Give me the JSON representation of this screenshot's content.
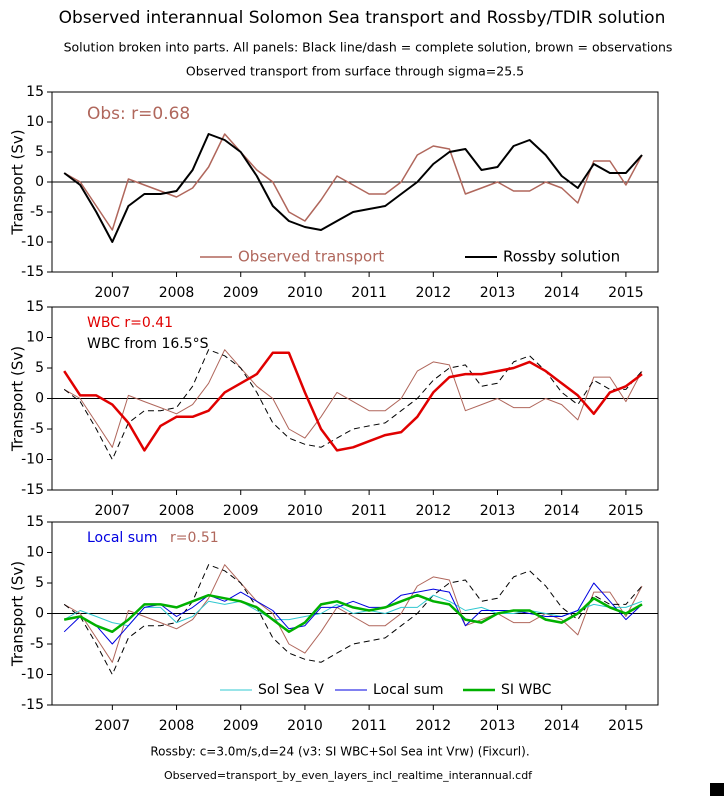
{
  "header": {
    "title": "Observed interannual Solomon Sea transport and Rossby/TDIR solution",
    "subtitle": "Solution broken into parts. All panels: Black line/dash = complete solution, brown = observations",
    "subtitle2": "Observed transport from surface through sigma=25.5"
  },
  "footer": {
    "line1": "Rossby: c=3.0m/s,d=24 (v3: SI WBC+Sol Sea int Vrw) (Fixcurl).",
    "line2": "Observed=transport_by_even_layers_incl_realtime_interannual.cdf"
  },
  "chart_data": [
    {
      "type": "line",
      "ylabel": "Transport (Sv)",
      "x": [
        2006.75,
        2007.0,
        2007.25,
        2007.5,
        2007.75,
        2008.0,
        2008.25,
        2008.5,
        2008.75,
        2009.0,
        2009.25,
        2009.5,
        2009.75,
        2010.0,
        2010.25,
        2010.5,
        2010.75,
        2011.0,
        2011.25,
        2011.5,
        2011.75,
        2012.0,
        2012.25,
        2012.5,
        2012.75,
        2013.0,
        2013.25,
        2013.5,
        2013.75,
        2014.0,
        2014.25,
        2014.5,
        2014.75,
        2015.0,
        2015.25,
        2015.5,
        2015.75
      ],
      "xlim": [
        2006.56,
        2016.0
      ],
      "xticks": [
        {
          "value": 2007.5,
          "label": "2007"
        },
        {
          "value": 2008.5,
          "label": "2008"
        },
        {
          "value": 2009.5,
          "label": "2009"
        },
        {
          "value": 2010.5,
          "label": "2010"
        },
        {
          "value": 2011.5,
          "label": "2011"
        },
        {
          "value": 2012.5,
          "label": "2012"
        },
        {
          "value": 2013.5,
          "label": "2013"
        },
        {
          "value": 2014.5,
          "label": "2014"
        },
        {
          "value": 2015.5,
          "label": "2015"
        }
      ],
      "ylim": [
        -15,
        15
      ],
      "yticks": [
        -15,
        -10,
        -5,
        0,
        5,
        10,
        15
      ],
      "annotations": [
        {
          "text": "Obs: r=0.68",
          "color": "#b0675c"
        }
      ],
      "series": [
        {
          "name": "Observed transport",
          "color": "#b0675c",
          "width": 1.5,
          "dash": false,
          "values": [
            1.5,
            0,
            -4,
            -8,
            0.5,
            -0.5,
            -1.5,
            -2.5,
            -1,
            2.5,
            8,
            5,
            2,
            0,
            -5,
            -6.5,
            -3,
            1,
            -0.5,
            -2,
            -2,
            0,
            4.5,
            6,
            5.5,
            -2,
            -1,
            0,
            -1.5,
            -1.5,
            0,
            -1,
            -3.5,
            3.5,
            3.5,
            -0.5,
            4.5
          ]
        },
        {
          "name": "Rossby solution",
          "color": "#000000",
          "width": 2,
          "dash": false,
          "values": [
            1.5,
            -0.5,
            -5,
            -10,
            -4,
            -2,
            -2,
            -1.5,
            2,
            8,
            7,
            5,
            1,
            -4,
            -6.5,
            -7.5,
            -8,
            -6.5,
            -5,
            -4.5,
            -4,
            -2,
            0,
            3,
            5,
            5.5,
            2,
            2.5,
            6,
            7,
            4.5,
            1,
            -1,
            3,
            1.5,
            1.5,
            4.5
          ]
        }
      ]
    },
    {
      "type": "line",
      "ylabel": "Transport (Sv)",
      "x": [
        2006.75,
        2007.0,
        2007.25,
        2007.5,
        2007.75,
        2008.0,
        2008.25,
        2008.5,
        2008.75,
        2009.0,
        2009.25,
        2009.5,
        2009.75,
        2010.0,
        2010.25,
        2010.5,
        2010.75,
        2011.0,
        2011.25,
        2011.5,
        2011.75,
        2012.0,
        2012.25,
        2012.5,
        2012.75,
        2013.0,
        2013.25,
        2013.5,
        2013.75,
        2014.0,
        2014.25,
        2014.5,
        2014.75,
        2015.0,
        2015.25,
        2015.5,
        2015.75
      ],
      "xlim": [
        2006.56,
        2016.0
      ],
      "xticks": [
        {
          "value": 2007.5,
          "label": "2007"
        },
        {
          "value": 2008.5,
          "label": "2008"
        },
        {
          "value": 2009.5,
          "label": "2009"
        },
        {
          "value": 2010.5,
          "label": "2010"
        },
        {
          "value": 2011.5,
          "label": "2011"
        },
        {
          "value": 2012.5,
          "label": "2012"
        },
        {
          "value": 2013.5,
          "label": "2013"
        },
        {
          "value": 2014.5,
          "label": "2014"
        },
        {
          "value": 2015.5,
          "label": "2015"
        }
      ],
      "ylim": [
        -15,
        15
      ],
      "yticks": [
        -15,
        -10,
        -5,
        0,
        5,
        10,
        15
      ],
      "annotations": [
        {
          "text": "WBC r=0.41",
          "color": "#e00000"
        },
        {
          "text": "WBC from 16.5°S",
          "color": "#000000"
        }
      ],
      "series": [
        {
          "color": "#b0675c",
          "width": 1,
          "dash": false,
          "values": [
            1.5,
            0,
            -4,
            -8,
            0.5,
            -0.5,
            -1.5,
            -2.5,
            -1,
            2.5,
            8,
            5,
            2,
            0,
            -5,
            -6.5,
            -3,
            1,
            -0.5,
            -2,
            -2,
            0,
            4.5,
            6,
            5.5,
            -2,
            -1,
            0,
            -1.5,
            -1.5,
            0,
            -1,
            -3.5,
            3.5,
            3.5,
            -0.5,
            4.5
          ]
        },
        {
          "color": "#000000",
          "width": 1,
          "dash": true,
          "values": [
            1.5,
            -0.5,
            -5,
            -10,
            -4,
            -2,
            -2,
            -1.5,
            2,
            8,
            7,
            5,
            1,
            -4,
            -6.5,
            -7.5,
            -8,
            -6.5,
            -5,
            -4.5,
            -4,
            -2,
            0,
            3,
            5,
            5.5,
            2,
            2.5,
            6,
            7,
            4.5,
            1,
            -1,
            3,
            1.5,
            1.5,
            4.5
          ]
        },
        {
          "color": "#e00000",
          "width": 2.5,
          "dash": false,
          "values": [
            4.5,
            0.5,
            0.5,
            -1,
            -4,
            -8.5,
            -4.5,
            -3,
            -3,
            -2,
            1,
            2.5,
            4,
            7.5,
            7.5,
            1,
            -5,
            -8.5,
            -8,
            -7,
            -6,
            -5.5,
            -3,
            1,
            3.5,
            4,
            4,
            4.5,
            5,
            6,
            4.5,
            2.5,
            0.5,
            -2.5,
            1,
            2,
            4
          ]
        }
      ]
    },
    {
      "type": "line",
      "ylabel": "Transport (Sv)",
      "x": [
        2006.75,
        2007.0,
        2007.25,
        2007.5,
        2007.75,
        2008.0,
        2008.25,
        2008.5,
        2008.75,
        2009.0,
        2009.25,
        2009.5,
        2009.75,
        2010.0,
        2010.25,
        2010.5,
        2010.75,
        2011.0,
        2011.25,
        2011.5,
        2011.75,
        2012.0,
        2012.25,
        2012.5,
        2012.75,
        2013.0,
        2013.25,
        2013.5,
        2013.75,
        2014.0,
        2014.25,
        2014.5,
        2014.75,
        2015.0,
        2015.25,
        2015.5,
        2015.75
      ],
      "xlim": [
        2006.56,
        2016.0
      ],
      "xticks": [
        {
          "value": 2007.5,
          "label": "2007"
        },
        {
          "value": 2008.5,
          "label": "2008"
        },
        {
          "value": 2009.5,
          "label": "2009"
        },
        {
          "value": 2010.5,
          "label": "2010"
        },
        {
          "value": 2011.5,
          "label": "2011"
        },
        {
          "value": 2012.5,
          "label": "2012"
        },
        {
          "value": 2013.5,
          "label": "2013"
        },
        {
          "value": 2014.5,
          "label": "2014"
        },
        {
          "value": 2015.5,
          "label": "2015"
        }
      ],
      "ylim": [
        -15,
        15
      ],
      "yticks": [
        -15,
        -10,
        -5,
        0,
        5,
        10,
        15
      ],
      "annotations": [
        {
          "text": "Local sum",
          "color": "#0000e0"
        },
        {
          "text": "r=0.51",
          "color": "#b0675c"
        }
      ],
      "series": [
        {
          "color": "#b0675c",
          "width": 1,
          "dash": false,
          "values": [
            1.5,
            0,
            -4,
            -8,
            0.5,
            -0.5,
            -1.5,
            -2.5,
            -1,
            2.5,
            8,
            5,
            2,
            0,
            -5,
            -6.5,
            -3,
            1,
            -0.5,
            -2,
            -2,
            0,
            4.5,
            6,
            5.5,
            -2,
            -1,
            0,
            -1.5,
            -1.5,
            0,
            -1,
            -3.5,
            3.5,
            3.5,
            -0.5,
            4.5
          ]
        },
        {
          "color": "#000000",
          "width": 1,
          "dash": true,
          "values": [
            1.5,
            -0.5,
            -5,
            -10,
            -4,
            -2,
            -2,
            -1.5,
            2,
            8,
            7,
            5,
            1,
            -4,
            -6.5,
            -7.5,
            -8,
            -6.5,
            -5,
            -4.5,
            -4,
            -2,
            0,
            3,
            5,
            5.5,
            2,
            2.5,
            6,
            7,
            4.5,
            1,
            -1,
            3,
            1.5,
            1.5,
            4.5
          ]
        },
        {
          "name": "Sol Sea V",
          "color": "#30c8d0",
          "width": 1,
          "dash": false,
          "values": [
            -1,
            0.5,
            -0.5,
            -1.5,
            -2,
            1,
            1,
            -1.5,
            -0.5,
            2,
            1.5,
            2,
            0.5,
            -1,
            -1,
            -0.5,
            0,
            1.5,
            0,
            0.5,
            0,
            1,
            1,
            3,
            2,
            0.5,
            1,
            0,
            0,
            0.5,
            0,
            -0.5,
            0.5,
            1.5,
            1,
            1,
            2
          ]
        },
        {
          "name": "Local sum",
          "color": "#0000e0",
          "width": 1,
          "dash": false,
          "values": [
            -3,
            -0.5,
            -2,
            -5,
            -2,
            1,
            1.5,
            -0.5,
            1,
            3,
            2,
            3.5,
            2,
            0.5,
            -2.5,
            -2,
            1,
            1,
            2,
            1,
            1,
            3,
            3.5,
            4,
            3.5,
            -2,
            0.5,
            0.5,
            0.5,
            0,
            -0.5,
            -0.5,
            0.5,
            5,
            2,
            -1,
            1.5
          ]
        },
        {
          "name": "SI WBC",
          "color": "#00b000",
          "width": 2.5,
          "dash": false,
          "values": [
            -1,
            -0.5,
            -2,
            -3,
            -1,
            1.5,
            1.5,
            1,
            2,
            3,
            2.5,
            2,
            1,
            -1,
            -3,
            -1.5,
            1.5,
            2,
            1,
            0.5,
            1,
            2,
            3,
            2,
            1.5,
            -1,
            -1.5,
            0,
            0.5,
            0.5,
            -1,
            -1.5,
            0,
            2.5,
            1,
            0,
            1.5
          ]
        }
      ]
    }
  ]
}
